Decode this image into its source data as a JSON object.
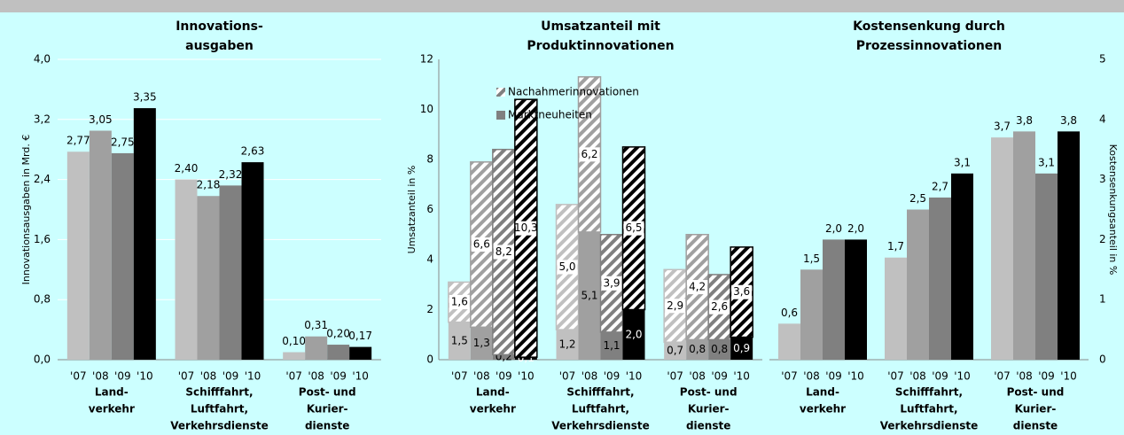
{
  "chart_data": [
    {
      "type": "bar",
      "title": [
        "Innovations-",
        "ausgaben"
      ],
      "ylabel": "Innovationsausgaben in Mrd. €",
      "categories": [
        [
          "Land-",
          "verkehr"
        ],
        [
          "Schifffahrt,",
          "Luftfahrt,",
          "Verkehrsdienste"
        ],
        [
          "Post- und",
          "Kurier-",
          "dienste"
        ]
      ],
      "series": [
        {
          "name": "'07",
          "color": "#c0c0c0",
          "values": [
            2.77,
            2.4,
            0.1
          ],
          "value_labels": [
            "2,77",
            "2,40",
            "0,10"
          ]
        },
        {
          "name": "'08",
          "color": "#a0a0a0",
          "values": [
            3.05,
            2.18,
            0.31
          ],
          "value_labels": [
            "3,05",
            "2,18",
            "0,31"
          ]
        },
        {
          "name": "'09",
          "color": "#808080",
          "values": [
            2.75,
            2.32,
            0.2
          ],
          "value_labels": [
            "2,75",
            "2,32",
            "0,20"
          ]
        },
        {
          "name": "'10",
          "color": "#000000",
          "values": [
            3.35,
            2.63,
            0.17
          ],
          "value_labels": [
            "3,35",
            "2,63",
            "0,17"
          ]
        }
      ],
      "ylim": [
        0,
        4
      ],
      "yticks": [
        {
          "value": 0,
          "label": "0,0"
        },
        {
          "value": 0.8,
          "label": "0,8"
        },
        {
          "value": 1.6,
          "label": "1,6"
        },
        {
          "value": 2.4,
          "label": "2,4"
        },
        {
          "value": 3.2,
          "label": "3,2"
        },
        {
          "value": 4,
          "label": "4,0"
        }
      ],
      "grid": true
    },
    {
      "type": "stacked_bar",
      "title": [
        "Umsatzanteil mit",
        "Produktinnovationen"
      ],
      "ylabel": "Umsatzanteil in %",
      "categories": [
        [
          "Land-",
          "verkehr"
        ],
        [
          "Schifffahrt,",
          "Luftfahrt,",
          "Verkehrsdienste"
        ],
        [
          "Post- und",
          "Kurier-",
          "dienste"
        ]
      ],
      "series": [
        {
          "name": "'07",
          "color": "#c0c0c0"
        },
        {
          "name": "'08",
          "color": "#a0a0a0"
        },
        {
          "name": "'09",
          "color": "#808080"
        },
        {
          "name": "'10",
          "color": "#000000"
        }
      ],
      "layers": [
        {
          "name": "Marktneuheiten",
          "hatch": false,
          "values": [
            [
              1.5,
              1.3,
              0.2,
              0.1
            ],
            [
              1.2,
              5.1,
              1.1,
              2.0
            ],
            [
              0.7,
              0.8,
              0.8,
              0.9
            ]
          ],
          "value_labels": [
            [
              "1,5",
              "1,3",
              "0,2",
              "0,1"
            ],
            [
              "1,2",
              "5,1",
              "1,1",
              "2,0"
            ],
            [
              "0,7",
              "0,8",
              "0,8",
              "0,9"
            ]
          ]
        },
        {
          "name": "Nachahmerinnovationen",
          "hatch": true,
          "values": [
            [
              1.6,
              6.6,
              8.2,
              10.3
            ],
            [
              5.0,
              6.2,
              3.9,
              6.5
            ],
            [
              2.9,
              4.2,
              2.6,
              3.6
            ]
          ],
          "value_labels": [
            [
              "1,6",
              "6,6",
              "8,2",
              "10,3"
            ],
            [
              "5,0",
              "6,2",
              "3,9",
              "6,5"
            ],
            [
              "2,9",
              "4,2",
              "2,6",
              "3,6"
            ]
          ]
        }
      ],
      "legend": "top",
      "ylim": [
        0,
        12
      ],
      "yticks": [
        0,
        2,
        4,
        6,
        8,
        10,
        12
      ],
      "grid": false
    },
    {
      "type": "bar",
      "title": [
        "Kostensenkung durch",
        "Prozessinnovationen"
      ],
      "y2label": "Kostensenkungsanteil in %",
      "categories": [
        [
          "Land-",
          "verkehr"
        ],
        [
          "Schifffahrt,",
          "Luftfahrt,",
          "Verkehrsdienste"
        ],
        [
          "Post- und",
          "Kurier-",
          "dienste"
        ]
      ],
      "series": [
        {
          "name": "'07",
          "color": "#c0c0c0",
          "axis": "y2",
          "values": [
            0.6,
            1.7,
            3.7
          ],
          "value_labels": [
            "0,6",
            "1,7",
            "3,7"
          ]
        },
        {
          "name": "'08",
          "color": "#a0a0a0",
          "axis": "y2",
          "values": [
            1.5,
            2.5,
            3.8
          ],
          "value_labels": [
            "1,5",
            "2,5",
            "3,8"
          ]
        },
        {
          "name": "'09",
          "color": "#808080",
          "axis": "y2",
          "values": [
            2.0,
            2.7,
            3.1
          ],
          "value_labels": [
            "2,0",
            "2,7",
            "3,1"
          ]
        },
        {
          "name": "'10",
          "color": "#000000",
          "axis": "y2",
          "values": [
            2.0,
            3.1,
            3.8
          ],
          "value_labels": [
            "2,0",
            "3,1",
            "3,8"
          ]
        }
      ],
      "y2lim": [
        0,
        5
      ],
      "y2ticks": [
        0,
        1,
        2,
        3,
        4,
        5
      ],
      "grid": false
    }
  ]
}
